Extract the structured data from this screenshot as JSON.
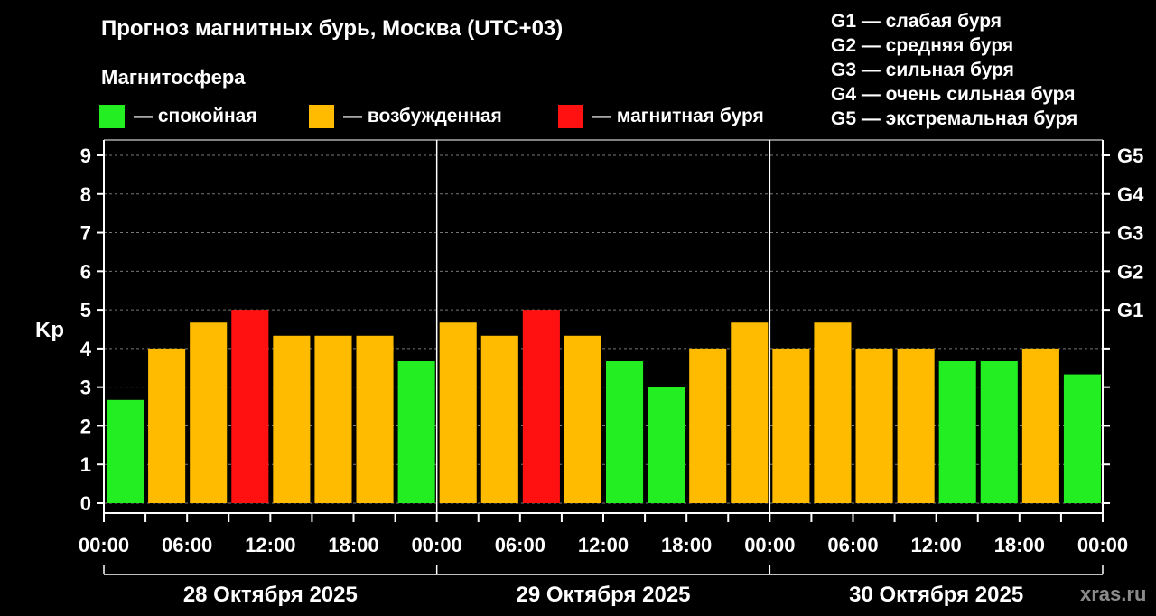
{
  "chart_data": {
    "type": "bar",
    "title": "Прогноз магнитных бурь, Москва (UTC+03)",
    "legend_title": "Магнитосфера",
    "legend": [
      {
        "label": "— спокойная",
        "color": "#22ee22"
      },
      {
        "label": "— возбужденная",
        "color": "#ffbb00"
      },
      {
        "label": "— магнитная буря",
        "color": "#ff1111"
      }
    ],
    "g_scale_legend": [
      "G1 — слабая буря",
      "G2 — средняя буря",
      "G3 — сильная буря",
      "G4 — очень сильная буря",
      "G5 — экстремальная буря"
    ],
    "ylabel": "Kp",
    "ylim": [
      0,
      9
    ],
    "yticks": [
      "0",
      "1",
      "2",
      "3",
      "4",
      "5",
      "6",
      "7",
      "8",
      "9"
    ],
    "right_ticks": [
      {
        "value": 5,
        "label": "G1"
      },
      {
        "value": 6,
        "label": "G2"
      },
      {
        "value": 7,
        "label": "G3"
      },
      {
        "value": 8,
        "label": "G4"
      },
      {
        "value": 9,
        "label": "G5"
      }
    ],
    "xticks": [
      "00:00",
      "06:00",
      "12:00",
      "18:00",
      "00:00",
      "06:00",
      "12:00",
      "18:00",
      "00:00",
      "06:00",
      "12:00",
      "18:00",
      "00:00"
    ],
    "days": [
      "28 Октября 2025",
      "29 Октября 2025",
      "30 Октября 2025"
    ],
    "grid": true,
    "values": [
      2.67,
      4.0,
      4.67,
      5.0,
      4.33,
      4.33,
      4.33,
      3.67,
      4.67,
      4.33,
      5.0,
      4.33,
      3.67,
      3.0,
      4.0,
      4.67,
      4.0,
      4.67,
      4.0,
      4.0,
      3.67,
      3.67,
      4.0,
      3.33
    ],
    "levels": [
      "quiet",
      "active",
      "active",
      "storm",
      "active",
      "active",
      "active",
      "quiet",
      "active",
      "active",
      "storm",
      "active",
      "quiet",
      "quiet",
      "active",
      "active",
      "active",
      "active",
      "active",
      "active",
      "quiet",
      "quiet",
      "active",
      "quiet"
    ],
    "level_colors": {
      "quiet": "#22ee22",
      "active": "#ffbb00",
      "storm": "#ff1111"
    }
  },
  "watermark": "xras.ru"
}
